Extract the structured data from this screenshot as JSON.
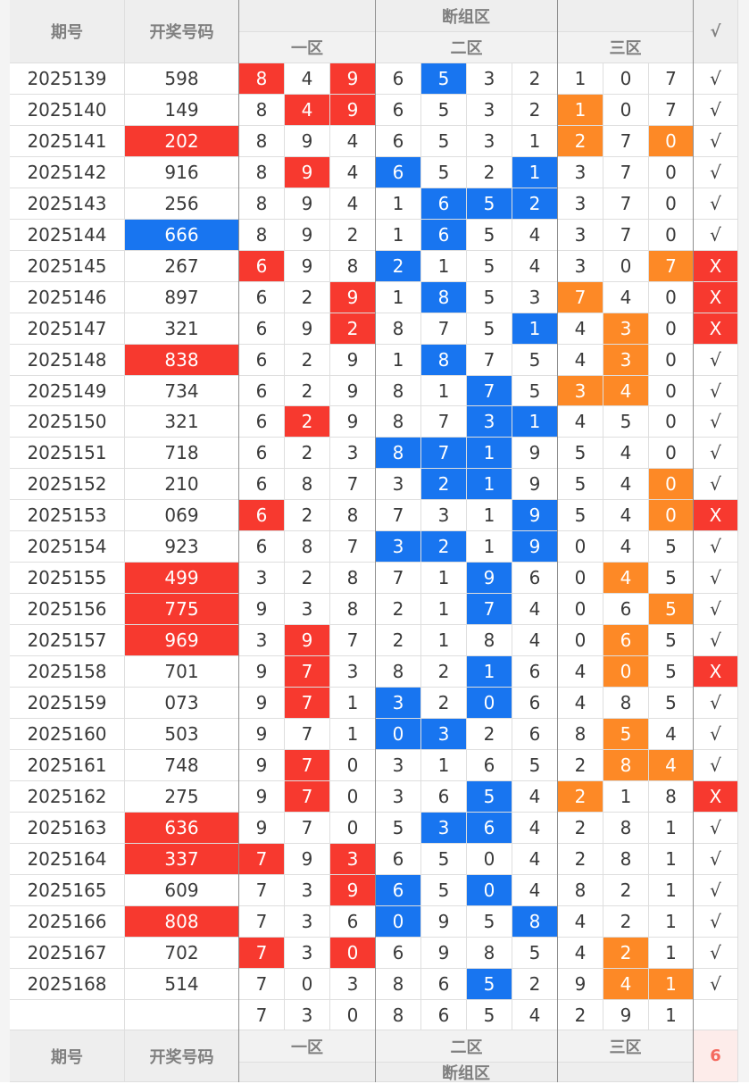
{
  "header": {
    "period_label": "期号",
    "draw_label": "开奖号码",
    "group_label": "断组区",
    "zone1_label": "一区",
    "zone2_label": "二区",
    "zone3_label": "三区",
    "check_label": "√"
  },
  "colors": {
    "red": "#f7392f",
    "blue": "#1875f0",
    "orange": "#fd8926",
    "header_bg": "#eeeeee",
    "header_text": "#7f7f7f"
  },
  "rows": [
    {
      "period": "2025139",
      "draw": "598",
      "draw_hl": false,
      "z1": [
        "8",
        "4",
        "9"
      ],
      "z1h": [
        1,
        0,
        1
      ],
      "z2": [
        "6",
        "5",
        "3",
        "2"
      ],
      "z2h": [
        0,
        1,
        0,
        0
      ],
      "z3": [
        "1",
        "0",
        "7"
      ],
      "z3h": [
        0,
        0,
        0
      ],
      "mark": "√"
    },
    {
      "period": "2025140",
      "draw": "149",
      "draw_hl": false,
      "z1": [
        "8",
        "4",
        "9"
      ],
      "z1h": [
        0,
        1,
        1
      ],
      "z2": [
        "6",
        "5",
        "3",
        "2"
      ],
      "z2h": [
        0,
        0,
        0,
        0
      ],
      "z3": [
        "1",
        "0",
        "7"
      ],
      "z3h": [
        1,
        0,
        0
      ],
      "mark": "√"
    },
    {
      "period": "2025141",
      "draw": "202",
      "draw_hl": true,
      "z1": [
        "8",
        "9",
        "4"
      ],
      "z1h": [
        0,
        0,
        0
      ],
      "z2": [
        "6",
        "5",
        "3",
        "1"
      ],
      "z2h": [
        0,
        0,
        0,
        0
      ],
      "z3": [
        "2",
        "7",
        "0"
      ],
      "z3h": [
        1,
        0,
        1
      ],
      "mark": "√"
    },
    {
      "period": "2025142",
      "draw": "916",
      "draw_hl": false,
      "z1": [
        "8",
        "9",
        "4"
      ],
      "z1h": [
        0,
        1,
        0
      ],
      "z2": [
        "6",
        "5",
        "2",
        "1"
      ],
      "z2h": [
        1,
        0,
        0,
        1
      ],
      "z3": [
        "3",
        "7",
        "0"
      ],
      "z3h": [
        0,
        0,
        0
      ],
      "mark": "√"
    },
    {
      "period": "2025143",
      "draw": "256",
      "draw_hl": false,
      "z1": [
        "8",
        "9",
        "4"
      ],
      "z1h": [
        0,
        0,
        0
      ],
      "z2": [
        "1",
        "6",
        "5",
        "2"
      ],
      "z2h": [
        0,
        1,
        1,
        1
      ],
      "z3": [
        "3",
        "7",
        "0"
      ],
      "z3h": [
        0,
        0,
        0
      ],
      "mark": "√"
    },
    {
      "period": "2025144",
      "draw": "666",
      "draw_hl": "blue",
      "z1": [
        "8",
        "9",
        "2"
      ],
      "z1h": [
        0,
        0,
        0
      ],
      "z2": [
        "1",
        "6",
        "5",
        "4"
      ],
      "z2h": [
        0,
        1,
        0,
        0
      ],
      "z3": [
        "3",
        "7",
        "0"
      ],
      "z3h": [
        0,
        0,
        0
      ],
      "mark": "√"
    },
    {
      "period": "2025145",
      "draw": "267",
      "draw_hl": false,
      "z1": [
        "6",
        "9",
        "8"
      ],
      "z1h": [
        1,
        0,
        0
      ],
      "z2": [
        "2",
        "1",
        "5",
        "4"
      ],
      "z2h": [
        1,
        0,
        0,
        0
      ],
      "z3": [
        "3",
        "0",
        "7"
      ],
      "z3h": [
        0,
        0,
        1
      ],
      "mark": "X"
    },
    {
      "period": "2025146",
      "draw": "897",
      "draw_hl": false,
      "z1": [
        "6",
        "2",
        "9"
      ],
      "z1h": [
        0,
        0,
        1
      ],
      "z2": [
        "1",
        "8",
        "5",
        "3"
      ],
      "z2h": [
        0,
        1,
        0,
        0
      ],
      "z3": [
        "7",
        "4",
        "0"
      ],
      "z3h": [
        1,
        0,
        0
      ],
      "mark": "X"
    },
    {
      "period": "2025147",
      "draw": "321",
      "draw_hl": false,
      "z1": [
        "6",
        "9",
        "2"
      ],
      "z1h": [
        0,
        0,
        1
      ],
      "z2": [
        "8",
        "7",
        "5",
        "1"
      ],
      "z2h": [
        0,
        0,
        0,
        1
      ],
      "z3": [
        "4",
        "3",
        "0"
      ],
      "z3h": [
        0,
        1,
        0
      ],
      "mark": "X"
    },
    {
      "period": "2025148",
      "draw": "838",
      "draw_hl": true,
      "z1": [
        "6",
        "2",
        "9"
      ],
      "z1h": [
        0,
        0,
        0
      ],
      "z2": [
        "1",
        "8",
        "7",
        "5"
      ],
      "z2h": [
        0,
        1,
        0,
        0
      ],
      "z3": [
        "4",
        "3",
        "0"
      ],
      "z3h": [
        0,
        1,
        0
      ],
      "mark": "√"
    },
    {
      "period": "2025149",
      "draw": "734",
      "draw_hl": false,
      "z1": [
        "6",
        "2",
        "9"
      ],
      "z1h": [
        0,
        0,
        0
      ],
      "z2": [
        "8",
        "1",
        "7",
        "5"
      ],
      "z2h": [
        0,
        0,
        1,
        0
      ],
      "z3": [
        "3",
        "4",
        "0"
      ],
      "z3h": [
        1,
        1,
        0
      ],
      "mark": "√"
    },
    {
      "period": "2025150",
      "draw": "321",
      "draw_hl": false,
      "z1": [
        "6",
        "2",
        "9"
      ],
      "z1h": [
        0,
        1,
        0
      ],
      "z2": [
        "8",
        "7",
        "3",
        "1"
      ],
      "z2h": [
        0,
        0,
        1,
        1
      ],
      "z3": [
        "4",
        "5",
        "0"
      ],
      "z3h": [
        0,
        0,
        0
      ],
      "mark": "√"
    },
    {
      "period": "2025151",
      "draw": "718",
      "draw_hl": false,
      "z1": [
        "6",
        "2",
        "3"
      ],
      "z1h": [
        0,
        0,
        0
      ],
      "z2": [
        "8",
        "7",
        "1",
        "9"
      ],
      "z2h": [
        1,
        1,
        1,
        0
      ],
      "z3": [
        "5",
        "4",
        "0"
      ],
      "z3h": [
        0,
        0,
        0
      ],
      "mark": "√"
    },
    {
      "period": "2025152",
      "draw": "210",
      "draw_hl": false,
      "z1": [
        "6",
        "8",
        "7"
      ],
      "z1h": [
        0,
        0,
        0
      ],
      "z2": [
        "3",
        "2",
        "1",
        "9"
      ],
      "z2h": [
        0,
        1,
        1,
        0
      ],
      "z3": [
        "5",
        "4",
        "0"
      ],
      "z3h": [
        0,
        0,
        1
      ],
      "mark": "√"
    },
    {
      "period": "2025153",
      "draw": "069",
      "draw_hl": false,
      "z1": [
        "6",
        "2",
        "8"
      ],
      "z1h": [
        1,
        0,
        0
      ],
      "z2": [
        "7",
        "3",
        "1",
        "9"
      ],
      "z2h": [
        0,
        0,
        0,
        1
      ],
      "z3": [
        "5",
        "4",
        "0"
      ],
      "z3h": [
        0,
        0,
        1
      ],
      "mark": "X"
    },
    {
      "period": "2025154",
      "draw": "923",
      "draw_hl": false,
      "z1": [
        "6",
        "8",
        "7"
      ],
      "z1h": [
        0,
        0,
        0
      ],
      "z2": [
        "3",
        "2",
        "1",
        "9"
      ],
      "z2h": [
        1,
        1,
        0,
        1
      ],
      "z3": [
        "0",
        "4",
        "5"
      ],
      "z3h": [
        0,
        0,
        0
      ],
      "mark": "√"
    },
    {
      "period": "2025155",
      "draw": "499",
      "draw_hl": true,
      "z1": [
        "3",
        "2",
        "8"
      ],
      "z1h": [
        0,
        0,
        0
      ],
      "z2": [
        "7",
        "1",
        "9",
        "6"
      ],
      "z2h": [
        0,
        0,
        1,
        0
      ],
      "z3": [
        "0",
        "4",
        "5"
      ],
      "z3h": [
        0,
        1,
        0
      ],
      "mark": "√"
    },
    {
      "period": "2025156",
      "draw": "775",
      "draw_hl": true,
      "z1": [
        "9",
        "3",
        "8"
      ],
      "z1h": [
        0,
        0,
        0
      ],
      "z2": [
        "2",
        "1",
        "7",
        "4"
      ],
      "z2h": [
        0,
        0,
        1,
        0
      ],
      "z3": [
        "0",
        "6",
        "5"
      ],
      "z3h": [
        0,
        0,
        1
      ],
      "mark": "√"
    },
    {
      "period": "2025157",
      "draw": "969",
      "draw_hl": true,
      "z1": [
        "3",
        "9",
        "7"
      ],
      "z1h": [
        0,
        1,
        0
      ],
      "z2": [
        "2",
        "1",
        "8",
        "4"
      ],
      "z2h": [
        0,
        0,
        0,
        0
      ],
      "z3": [
        "0",
        "6",
        "5"
      ],
      "z3h": [
        0,
        1,
        0
      ],
      "mark": "√"
    },
    {
      "period": "2025158",
      "draw": "701",
      "draw_hl": false,
      "z1": [
        "9",
        "7",
        "3"
      ],
      "z1h": [
        0,
        1,
        0
      ],
      "z2": [
        "8",
        "2",
        "1",
        "6"
      ],
      "z2h": [
        0,
        0,
        1,
        0
      ],
      "z3": [
        "4",
        "0",
        "5"
      ],
      "z3h": [
        0,
        1,
        0
      ],
      "mark": "X"
    },
    {
      "period": "2025159",
      "draw": "073",
      "draw_hl": false,
      "z1": [
        "9",
        "7",
        "1"
      ],
      "z1h": [
        0,
        1,
        0
      ],
      "z2": [
        "3",
        "2",
        "0",
        "6"
      ],
      "z2h": [
        1,
        0,
        1,
        0
      ],
      "z3": [
        "4",
        "8",
        "5"
      ],
      "z3h": [
        0,
        0,
        0
      ],
      "mark": "√"
    },
    {
      "period": "2025160",
      "draw": "503",
      "draw_hl": false,
      "z1": [
        "9",
        "7",
        "1"
      ],
      "z1h": [
        0,
        0,
        0
      ],
      "z2": [
        "0",
        "3",
        "2",
        "6"
      ],
      "z2h": [
        1,
        1,
        0,
        0
      ],
      "z3": [
        "8",
        "5",
        "4"
      ],
      "z3h": [
        0,
        1,
        0
      ],
      "mark": "√"
    },
    {
      "period": "2025161",
      "draw": "748",
      "draw_hl": false,
      "z1": [
        "9",
        "7",
        "0"
      ],
      "z1h": [
        0,
        1,
        0
      ],
      "z2": [
        "3",
        "1",
        "6",
        "5"
      ],
      "z2h": [
        0,
        0,
        0,
        0
      ],
      "z3": [
        "2",
        "8",
        "4"
      ],
      "z3h": [
        0,
        1,
        1
      ],
      "mark": "√"
    },
    {
      "period": "2025162",
      "draw": "275",
      "draw_hl": false,
      "z1": [
        "9",
        "7",
        "0"
      ],
      "z1h": [
        0,
        1,
        0
      ],
      "z2": [
        "3",
        "6",
        "5",
        "4"
      ],
      "z2h": [
        0,
        0,
        1,
        0
      ],
      "z3": [
        "2",
        "1",
        "8"
      ],
      "z3h": [
        1,
        0,
        0
      ],
      "mark": "X"
    },
    {
      "period": "2025163",
      "draw": "636",
      "draw_hl": true,
      "z1": [
        "9",
        "7",
        "0"
      ],
      "z1h": [
        0,
        0,
        0
      ],
      "z2": [
        "5",
        "3",
        "6",
        "4"
      ],
      "z2h": [
        0,
        1,
        1,
        0
      ],
      "z3": [
        "2",
        "8",
        "1"
      ],
      "z3h": [
        0,
        0,
        0
      ],
      "mark": "√"
    },
    {
      "period": "2025164",
      "draw": "337",
      "draw_hl": true,
      "z1": [
        "7",
        "9",
        "3"
      ],
      "z1h": [
        1,
        0,
        1
      ],
      "z2": [
        "6",
        "5",
        "0",
        "4"
      ],
      "z2h": [
        0,
        0,
        0,
        0
      ],
      "z3": [
        "2",
        "8",
        "1"
      ],
      "z3h": [
        0,
        0,
        0
      ],
      "mark": "√"
    },
    {
      "period": "2025165",
      "draw": "609",
      "draw_hl": false,
      "z1": [
        "7",
        "3",
        "9"
      ],
      "z1h": [
        0,
        0,
        1
      ],
      "z2": [
        "6",
        "5",
        "0",
        "4"
      ],
      "z2h": [
        1,
        0,
        1,
        0
      ],
      "z3": [
        "8",
        "2",
        "1"
      ],
      "z3h": [
        0,
        0,
        0
      ],
      "mark": "√"
    },
    {
      "period": "2025166",
      "draw": "808",
      "draw_hl": true,
      "z1": [
        "7",
        "3",
        "6"
      ],
      "z1h": [
        0,
        0,
        0
      ],
      "z2": [
        "0",
        "9",
        "5",
        "8"
      ],
      "z2h": [
        1,
        0,
        0,
        1
      ],
      "z3": [
        "4",
        "2",
        "1"
      ],
      "z3h": [
        0,
        0,
        0
      ],
      "mark": "√"
    },
    {
      "period": "2025167",
      "draw": "702",
      "draw_hl": false,
      "z1": [
        "7",
        "3",
        "0"
      ],
      "z1h": [
        1,
        0,
        1
      ],
      "z2": [
        "6",
        "9",
        "8",
        "5"
      ],
      "z2h": [
        0,
        0,
        0,
        0
      ],
      "z3": [
        "4",
        "2",
        "1"
      ],
      "z3h": [
        0,
        1,
        0
      ],
      "mark": "√"
    },
    {
      "period": "2025168",
      "draw": "514",
      "draw_hl": false,
      "z1": [
        "7",
        "0",
        "3"
      ],
      "z1h": [
        0,
        0,
        0
      ],
      "z2": [
        "8",
        "6",
        "5",
        "2"
      ],
      "z2h": [
        0,
        0,
        1,
        0
      ],
      "z3": [
        "9",
        "4",
        "1"
      ],
      "z3h": [
        0,
        1,
        1
      ],
      "mark": "√"
    }
  ],
  "next_row": {
    "z1": [
      "7",
      "3",
      "0"
    ],
    "z2": [
      "8",
      "6",
      "5",
      "4"
    ],
    "z3": [
      "2",
      "9",
      "1"
    ]
  },
  "footer": {
    "period_label": "期号",
    "draw_label": "开奖号码",
    "zone1_label": "一区",
    "zone2_label": "二区",
    "zone3_label": "三区",
    "group_label": "断组区",
    "miss_count": "6"
  }
}
